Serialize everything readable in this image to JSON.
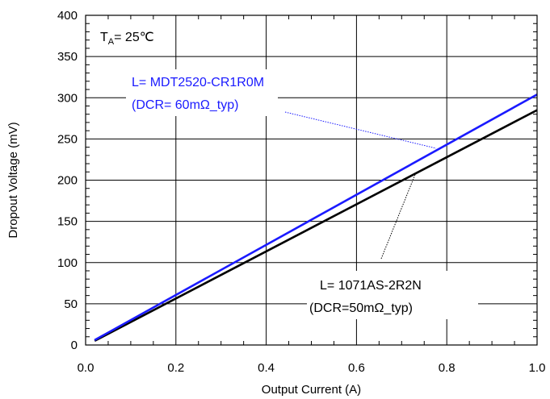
{
  "chart_data": {
    "type": "line",
    "xlabel": "Output Current (A)",
    "ylabel": "Dropout Voltage (mV)",
    "xlim": [
      0,
      1.0
    ],
    "ylim": [
      0,
      400
    ],
    "x_ticks": [
      "0.0",
      "0.2",
      "0.4",
      "0.6",
      "0.8",
      "1.0"
    ],
    "y_ticks": [
      "0",
      "50",
      "100",
      "150",
      "200",
      "250",
      "300",
      "350",
      "400"
    ],
    "grid": true,
    "condition": {
      "prefix": "T",
      "subscript": "A",
      "suffix": "= 25℃"
    },
    "series": [
      {
        "name": "L= MDT2520-CR1R0M",
        "note": "(DCR= 60mΩ_typ)",
        "color": "#1a1aff",
        "x": [
          0.02,
          1.0
        ],
        "y": [
          6,
          304
        ]
      },
      {
        "name": "L= 1071AS-2R2N",
        "note": "(DCR=50mΩ_typ)",
        "color": "#000000",
        "x": [
          0.02,
          1.0
        ],
        "y": [
          5,
          285
        ]
      }
    ]
  }
}
